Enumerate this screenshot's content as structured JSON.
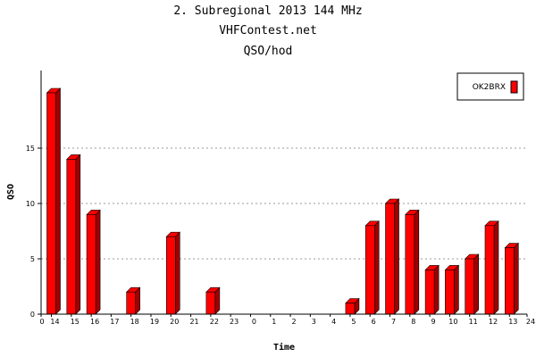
{
  "chart_data": {
    "type": "bar",
    "title": "2. Subregional 2013 144 MHz",
    "subtitle": "VHFContest.net",
    "subtitle2": "QSO/hod",
    "xlabel": "Time",
    "ylabel": "QSO",
    "x_ticks": [
      "0",
      "14",
      "15",
      "16",
      "17",
      "18",
      "19",
      "20",
      "21",
      "22",
      "23",
      "0",
      "1",
      "2",
      "3",
      "4",
      "5",
      "6",
      "7",
      "8",
      "9",
      "10",
      "11",
      "12",
      "13",
      "24"
    ],
    "categories": [
      "14",
      "15",
      "16",
      "17",
      "18",
      "19",
      "20",
      "21",
      "22",
      "23",
      "0",
      "1",
      "2",
      "3",
      "4",
      "5",
      "6",
      "7",
      "8",
      "9",
      "10",
      "11",
      "12",
      "13"
    ],
    "series": [
      {
        "name": "OK2BRX",
        "values": [
          20,
          14,
          9,
          0,
          2,
          0,
          7,
          0,
          2,
          0,
          0,
          0,
          0,
          0,
          0,
          1,
          8,
          10,
          9,
          4,
          4,
          5,
          8,
          6
        ]
      }
    ],
    "ylim": [
      0,
      22
    ],
    "y_ticks": [
      0,
      5,
      10,
      15
    ],
    "grid": true,
    "legend": "top-right",
    "colors": {
      "bar": "#ff0000",
      "bar_side": "#a00000",
      "grid": "#999999"
    }
  }
}
